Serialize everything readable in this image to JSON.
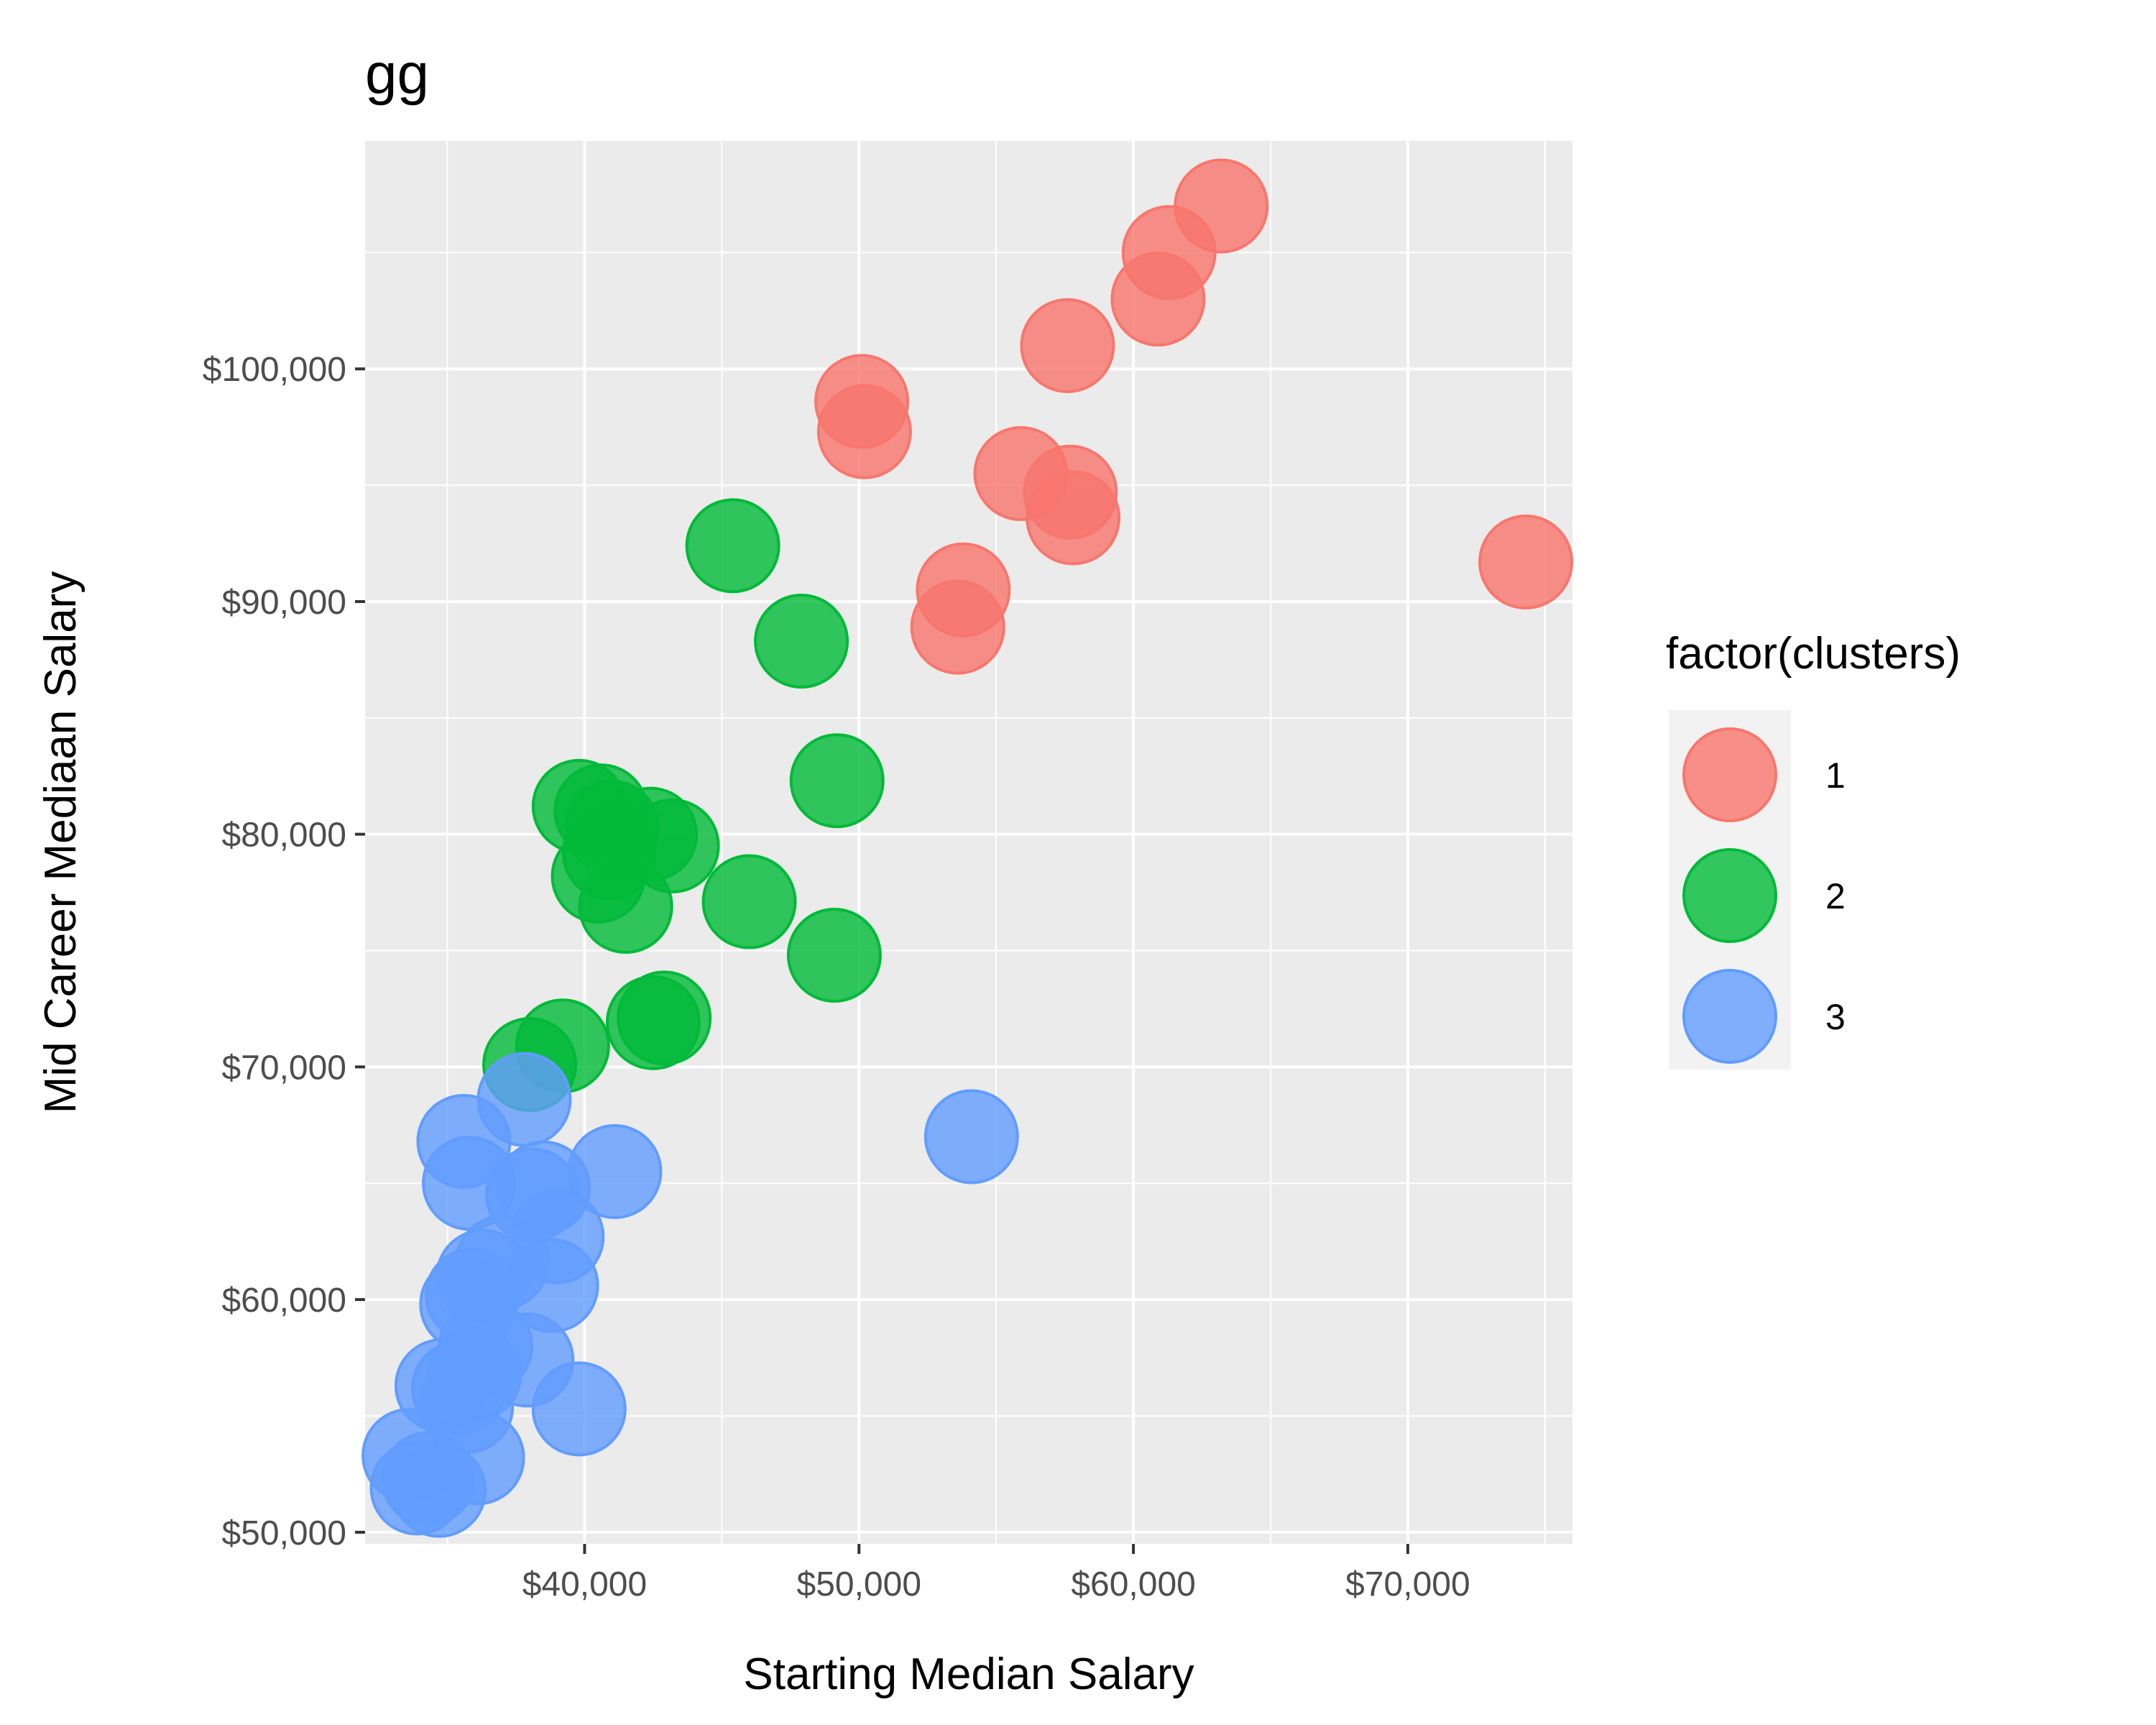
{
  "chart_data": {
    "type": "scatter",
    "title": "gg",
    "xlabel": "Starting Median Salary",
    "ylabel": "Mid Career Mediaan Salary",
    "xlim": [
      32000,
      76000
    ],
    "ylim": [
      49500,
      109800
    ],
    "x_ticks": [
      {
        "value": 40000,
        "label": "$40,000"
      },
      {
        "value": 50000,
        "label": "$50,000"
      },
      {
        "value": 60000,
        "label": "$60,000"
      },
      {
        "value": 70000,
        "label": "$70,000"
      }
    ],
    "y_ticks": [
      {
        "value": 50000,
        "label": "$50,000"
      },
      {
        "value": 60000,
        "label": "$60,000"
      },
      {
        "value": 70000,
        "label": "$70,000"
      },
      {
        "value": 80000,
        "label": "$80,000"
      },
      {
        "value": 90000,
        "label": "$90,000"
      },
      {
        "value": 100000,
        "label": "$100,000"
      }
    ],
    "grid": true,
    "legend": {
      "title": "factor(clusters)",
      "placement": "right"
    },
    "series": [
      {
        "name": "1",
        "color": "#F8766D",
        "points": [
          {
            "x": 63200,
            "y": 107000
          },
          {
            "x": 61300,
            "y": 105000
          },
          {
            "x": 60900,
            "y": 103000
          },
          {
            "x": 57600,
            "y": 101000
          },
          {
            "x": 50100,
            "y": 98600
          },
          {
            "x": 50200,
            "y": 97300
          },
          {
            "x": 55900,
            "y": 95500
          },
          {
            "x": 57700,
            "y": 94700
          },
          {
            "x": 57800,
            "y": 93600
          },
          {
            "x": 74300,
            "y": 91700
          },
          {
            "x": 53800,
            "y": 90500
          },
          {
            "x": 53600,
            "y": 88900
          }
        ]
      },
      {
        "name": "2",
        "color": "#00BA38",
        "points": [
          {
            "x": 45400,
            "y": 92400
          },
          {
            "x": 47900,
            "y": 88300
          },
          {
            "x": 49200,
            "y": 82300
          },
          {
            "x": 39800,
            "y": 81200
          },
          {
            "x": 40600,
            "y": 81000
          },
          {
            "x": 41000,
            "y": 80300
          },
          {
            "x": 42400,
            "y": 80000
          },
          {
            "x": 43200,
            "y": 79500
          },
          {
            "x": 40900,
            "y": 79200
          },
          {
            "x": 40500,
            "y": 78200
          },
          {
            "x": 46000,
            "y": 77100
          },
          {
            "x": 41500,
            "y": 76900
          },
          {
            "x": 49100,
            "y": 74800
          },
          {
            "x": 42900,
            "y": 72100
          },
          {
            "x": 42500,
            "y": 71900
          },
          {
            "x": 39200,
            "y": 70900
          },
          {
            "x": 38000,
            "y": 70100
          }
        ]
      },
      {
        "name": "3",
        "color": "#619CFF",
        "points": [
          {
            "x": 37800,
            "y": 68600
          },
          {
            "x": 35600,
            "y": 66800
          },
          {
            "x": 54100,
            "y": 67000
          },
          {
            "x": 41100,
            "y": 65500
          },
          {
            "x": 35800,
            "y": 65000
          },
          {
            "x": 38500,
            "y": 64800
          },
          {
            "x": 38100,
            "y": 64500
          },
          {
            "x": 39000,
            "y": 62700
          },
          {
            "x": 37000,
            "y": 61600
          },
          {
            "x": 36300,
            "y": 61000
          },
          {
            "x": 38800,
            "y": 60600
          },
          {
            "x": 35900,
            "y": 60200
          },
          {
            "x": 35700,
            "y": 59800
          },
          {
            "x": 36400,
            "y": 58000
          },
          {
            "x": 37900,
            "y": 57400
          },
          {
            "x": 36000,
            "y": 56800
          },
          {
            "x": 35400,
            "y": 56200
          },
          {
            "x": 34800,
            "y": 56300
          },
          {
            "x": 35700,
            "y": 55400
          },
          {
            "x": 39800,
            "y": 55300
          },
          {
            "x": 36100,
            "y": 53200
          },
          {
            "x": 33600,
            "y": 53300
          },
          {
            "x": 34300,
            "y": 52300
          },
          {
            "x": 34700,
            "y": 51800
          },
          {
            "x": 33900,
            "y": 51900
          }
        ]
      }
    ]
  }
}
